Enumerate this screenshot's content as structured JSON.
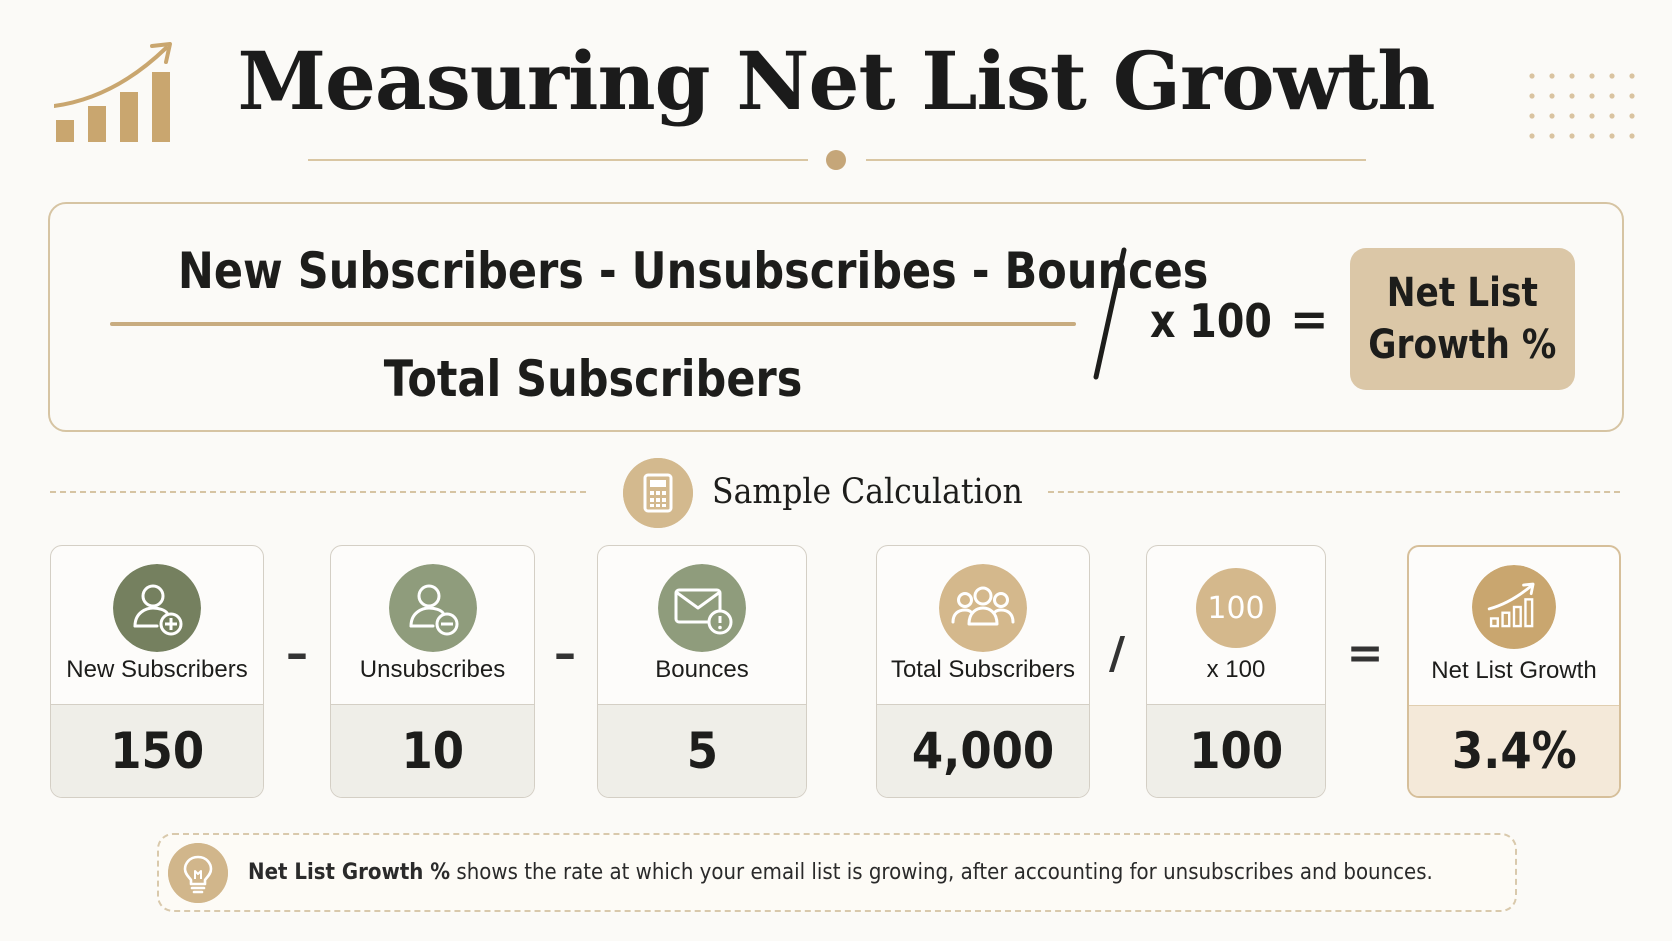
{
  "header": {
    "title": "Measuring Net List Growth",
    "logo_icon": "growth-chart-icon"
  },
  "formula": {
    "numerator": "New Subscribers - Unsubscribes - Bounces",
    "denominator": "Total Subscribers",
    "multiplier": "x 100",
    "equals": "=",
    "result": "Net List\nGrowth %"
  },
  "sample": {
    "title": "Sample Calculation",
    "icon": "calculator-icon",
    "cards": [
      {
        "label": "New Subscribers",
        "value": "150",
        "icon": "user-plus-icon"
      },
      {
        "label": "Unsubscribes",
        "value": "10",
        "icon": "user-minus-icon"
      },
      {
        "label": "Bounces",
        "value": "5",
        "icon": "mail-alert-icon"
      },
      {
        "label": "Total Subscribers",
        "value": "4,000",
        "icon": "users-group-icon"
      },
      {
        "label": "x 100",
        "value": "100",
        "icon_text": "100"
      },
      {
        "label": "Net List Growth",
        "value": "3.4%",
        "icon": "growth-chart-icon"
      }
    ],
    "operators": [
      "–",
      "–",
      "/",
      "="
    ]
  },
  "note": {
    "icon": "lightbulb-icon",
    "bold": "Net List Growth %",
    "text": " shows the rate at which your email list is growing, after accounting for unsubscribes and bounces."
  },
  "colors": {
    "accent": "#c5a679",
    "sage": "#8f9c7c",
    "highlight_bg": "#f4e9d9"
  }
}
